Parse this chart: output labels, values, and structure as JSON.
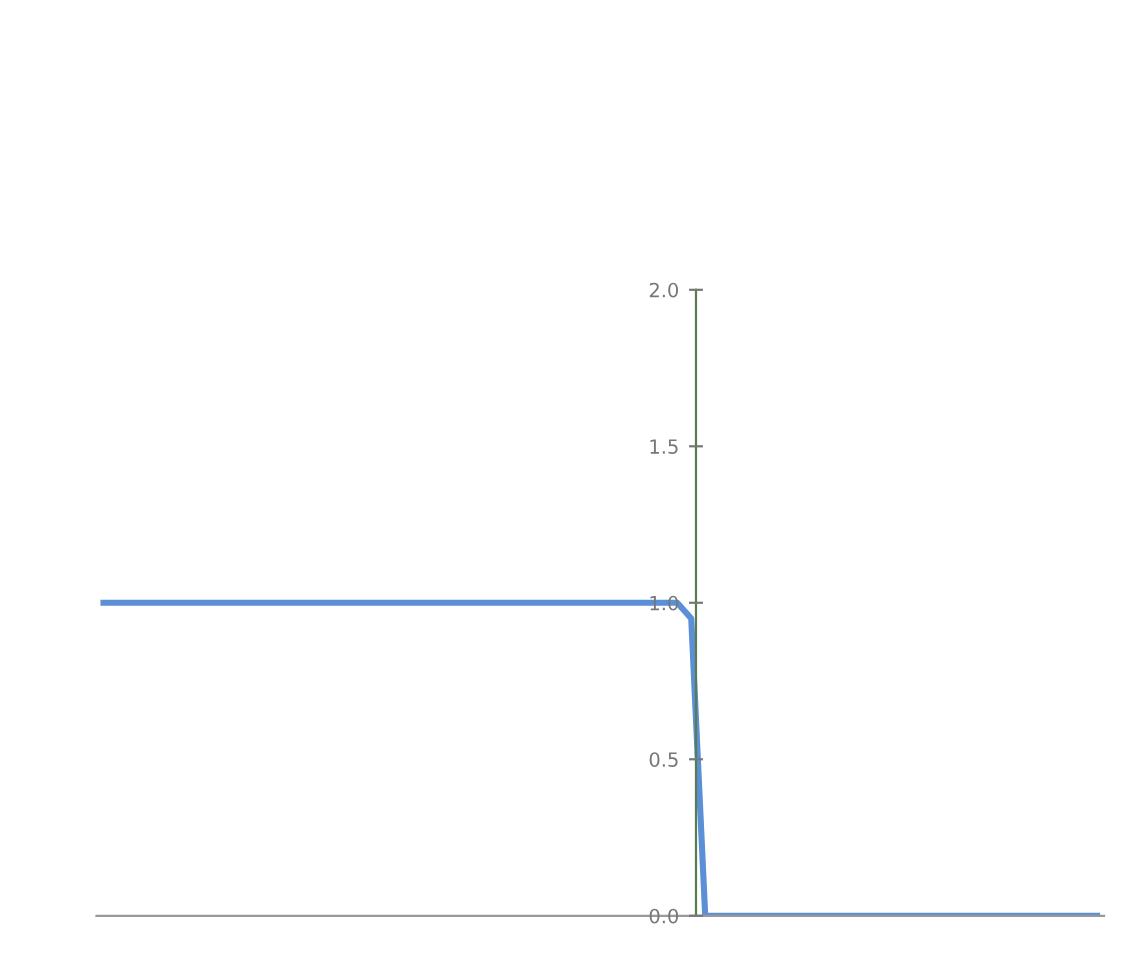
{
  "chart_data": {
    "type": "line",
    "categories": [
      null,
      null,
      null,
      null,
      null,
      null,
      null,
      null,
      null,
      null,
      null,
      null,
      null,
      null,
      null,
      null,
      null,
      null,
      null,
      null,
      null,
      null,
      null,
      null,
      null,
      null,
      null,
      null,
      null,
      null,
      null,
      null,
      null,
      null,
      null,
      null,
      null,
      null,
      null,
      null,
      null,
      null,
      null,
      null,
      null,
      null,
      null,
      null,
      null,
      null,
      null,
      null,
      null,
      null,
      null,
      null,
      null,
      null,
      null,
      null,
      null,
      null,
      null,
      null,
      null,
      null,
      null,
      null,
      null,
      null,
      null,
      null
    ],
    "series": [
      {
        "color": "#5b8fd6",
        "values": [
          1.0,
          1.0,
          1.0,
          1.0,
          1.0,
          1.0,
          1.0,
          1.0,
          1.0,
          1.0,
          1.0,
          1.0,
          1.0,
          1.0,
          1.0,
          1.0,
          1.0,
          1.0,
          1.0,
          1.0,
          1.0,
          1.0,
          1.0,
          1.0,
          1.0,
          1.0,
          1.0,
          1.0,
          1.0,
          1.0,
          1.0,
          1.0,
          1.0,
          1.0,
          1.0,
          1.0,
          1.0,
          1.0,
          1.0,
          1.0,
          1.0,
          1.0,
          0.95,
          0.0,
          0.0,
          0.0,
          0.0,
          0.0,
          0.0,
          0.0,
          0.0,
          0.0,
          0.0,
          0.0,
          0.0,
          0.0,
          0.0,
          0.0,
          0.0,
          0.0,
          0.0,
          0.0,
          0.0,
          0.0,
          0.0,
          0.0,
          0.0,
          0.0,
          0.0,
          0.0,
          0.0,
          0.0
        ]
      }
    ],
    "ylim": [
      0,
      2
    ],
    "yticks": [
      {
        "value": 0,
        "label": "0.0"
      },
      {
        "value": 0.5,
        "label": "0.5"
      },
      {
        "value": 1,
        "label": "1.0"
      },
      {
        "value": 1.5,
        "label": "1.5"
      },
      {
        "value": 2,
        "label": "2.0"
      }
    ],
    "tick_labels": "y",
    "grid": false,
    "legend": false,
    "marker": "none",
    "line_style": "solid"
  }
}
